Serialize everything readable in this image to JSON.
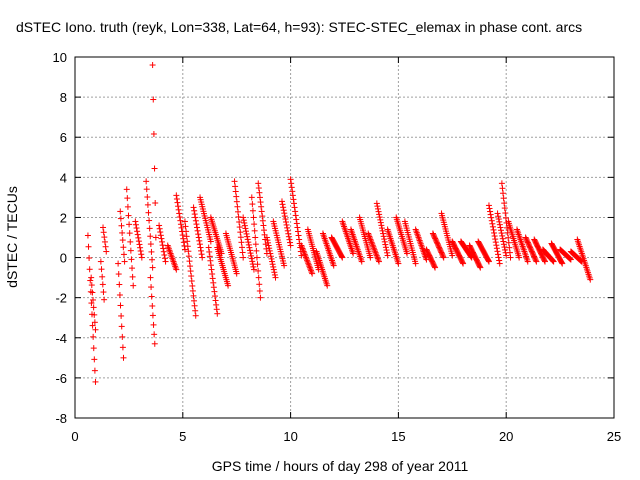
{
  "chart_data": {
    "type": "scatter",
    "title": "dSTEC Iono. truth (reyk, Lon=338, Lat=64, h=93): STEC-STEC_elemax in phase cont. arcs",
    "xlabel": "GPS time / hours of day 298 of year 2011",
    "ylabel": "dSTEC  / TECUs",
    "xlim": [
      0,
      25
    ],
    "ylim": [
      -8,
      10
    ],
    "x_ticks": [
      0,
      5,
      10,
      15,
      20,
      25
    ],
    "y_ticks": [
      -8,
      -6,
      -4,
      -2,
      0,
      2,
      4,
      6,
      8,
      10
    ],
    "grid": true,
    "marker": "+",
    "color": "#ff0000",
    "arcs": [
      {
        "x": [
          0.6,
          0.95
        ],
        "y": [
          1.1,
          -6.2
        ],
        "shape": "linear"
      },
      {
        "x": [
          0.75,
          0.95
        ],
        "y": [
          -1.0,
          -3.6
        ],
        "shape": "linear"
      },
      {
        "x": [
          1.2,
          1.35
        ],
        "y": [
          -0.2,
          -2.1
        ],
        "shape": "linear"
      },
      {
        "x": [
          1.3,
          1.45
        ],
        "y": [
          1.5,
          0.3
        ],
        "shape": "linear"
      },
      {
        "x": [
          2.0,
          2.25
        ],
        "y": [
          -0.3,
          -5.0
        ],
        "shape": "linear"
      },
      {
        "x": [
          2.1,
          2.3
        ],
        "y": [
          2.3,
          -0.2
        ],
        "shape": "linear"
      },
      {
        "x": [
          2.4,
          2.7
        ],
        "y": [
          3.4,
          -1.4
        ],
        "shape": "linear"
      },
      {
        "x": [
          2.8,
          3.1
        ],
        "y": [
          1.8,
          0.0
        ],
        "shape": "linear"
      },
      {
        "x": [
          3.3,
          3.6
        ],
        "y": [
          3.8,
          -0.5
        ],
        "shape": "linear"
      },
      {
        "x": [
          3.6,
          3.75
        ],
        "y": [
          9.6,
          1.0
        ],
        "shape": "linear"
      },
      {
        "x": [
          3.5,
          3.7
        ],
        "y": [
          -1.0,
          -4.3
        ],
        "shape": "linear"
      },
      {
        "x": [
          3.9,
          4.2
        ],
        "y": [
          1.6,
          -0.2
        ],
        "shape": "linear"
      },
      {
        "x": [
          4.3,
          4.7
        ],
        "y": [
          0.6,
          -0.6
        ],
        "shape": "linear"
      },
      {
        "x": [
          4.7,
          5.1
        ],
        "y": [
          3.1,
          0.4
        ],
        "shape": "linear"
      },
      {
        "x": [
          5.1,
          5.6
        ],
        "y": [
          1.8,
          -2.9
        ],
        "shape": "linear"
      },
      {
        "x": [
          5.5,
          5.9
        ],
        "y": [
          2.5,
          0.0
        ],
        "shape": "linear"
      },
      {
        "x": [
          5.8,
          6.3
        ],
        "y": [
          3.0,
          0.8
        ],
        "shape": "linear"
      },
      {
        "x": [
          6.2,
          6.6
        ],
        "y": [
          0.5,
          -2.8
        ],
        "shape": "linear"
      },
      {
        "x": [
          6.3,
          6.8
        ],
        "y": [
          2.0,
          0.2
        ],
        "shape": "linear"
      },
      {
        "x": [
          6.6,
          7.1
        ],
        "y": [
          0.5,
          -1.4
        ],
        "shape": "linear"
      },
      {
        "x": [
          7.0,
          7.5
        ],
        "y": [
          1.2,
          -0.8
        ],
        "shape": "linear"
      },
      {
        "x": [
          7.4,
          7.8
        ],
        "y": [
          3.8,
          0.0
        ],
        "shape": "linear"
      },
      {
        "x": [
          7.8,
          8.3
        ],
        "y": [
          2.0,
          -0.6
        ],
        "shape": "linear"
      },
      {
        "x": [
          8.2,
          8.6
        ],
        "y": [
          3.0,
          -2.0
        ],
        "shape": "linear"
      },
      {
        "x": [
          8.5,
          8.9
        ],
        "y": [
          3.7,
          0.2
        ],
        "shape": "linear"
      },
      {
        "x": [
          8.9,
          9.3
        ],
        "y": [
          1.0,
          -1.0
        ],
        "shape": "linear"
      },
      {
        "x": [
          9.2,
          9.7
        ],
        "y": [
          1.8,
          -0.4
        ],
        "shape": "linear"
      },
      {
        "x": [
          9.6,
          10.0
        ],
        "y": [
          2.8,
          0.6
        ],
        "shape": "linear"
      },
      {
        "x": [
          10.0,
          10.5
        ],
        "y": [
          3.9,
          0.1
        ],
        "shape": "linear"
      },
      {
        "x": [
          10.5,
          11.0
        ],
        "y": [
          0.6,
          -0.8
        ],
        "shape": "linear"
      },
      {
        "x": [
          10.8,
          11.3
        ],
        "y": [
          1.4,
          -0.6
        ],
        "shape": "linear"
      },
      {
        "x": [
          11.2,
          11.7
        ],
        "y": [
          0.3,
          -1.4
        ],
        "shape": "linear"
      },
      {
        "x": [
          11.5,
          12.0
        ],
        "y": [
          1.2,
          -0.4
        ],
        "shape": "linear"
      },
      {
        "x": [
          11.9,
          12.4
        ],
        "y": [
          1.0,
          0.0
        ],
        "shape": "linear"
      },
      {
        "x": [
          12.4,
          12.9
        ],
        "y": [
          1.8,
          0.2
        ],
        "shape": "linear"
      },
      {
        "x": [
          12.8,
          13.3
        ],
        "y": [
          1.4,
          -0.2
        ],
        "shape": "linear"
      },
      {
        "x": [
          13.2,
          13.7
        ],
        "y": [
          2.0,
          0.0
        ],
        "shape": "linear"
      },
      {
        "x": [
          13.6,
          14.1
        ],
        "y": [
          1.2,
          -0.2
        ],
        "shape": "linear"
      },
      {
        "x": [
          14.0,
          14.5
        ],
        "y": [
          2.7,
          0.1
        ],
        "shape": "linear"
      },
      {
        "x": [
          14.5,
          15.0
        ],
        "y": [
          1.4,
          -0.3
        ],
        "shape": "linear"
      },
      {
        "x": [
          14.9,
          15.4
        ],
        "y": [
          2.0,
          0.2
        ],
        "shape": "linear"
      },
      {
        "x": [
          15.3,
          15.8
        ],
        "y": [
          1.8,
          -0.3
        ],
        "shape": "linear"
      },
      {
        "x": [
          15.8,
          16.3
        ],
        "y": [
          1.4,
          -0.1
        ],
        "shape": "linear"
      },
      {
        "x": [
          16.3,
          16.7
        ],
        "y": [
          0.4,
          -0.5
        ],
        "shape": "linear"
      },
      {
        "x": [
          16.6,
          17.1
        ],
        "y": [
          1.2,
          0.0
        ],
        "shape": "linear"
      },
      {
        "x": [
          17.0,
          17.5
        ],
        "y": [
          2.2,
          0.1
        ],
        "shape": "linear"
      },
      {
        "x": [
          17.5,
          18.0
        ],
        "y": [
          0.8,
          -0.3
        ],
        "shape": "linear"
      },
      {
        "x": [
          17.9,
          18.4
        ],
        "y": [
          0.8,
          0.0
        ],
        "shape": "linear"
      },
      {
        "x": [
          18.3,
          18.8
        ],
        "y": [
          0.6,
          -0.5
        ],
        "shape": "linear"
      },
      {
        "x": [
          18.7,
          19.2
        ],
        "y": [
          0.8,
          -0.2
        ],
        "shape": "linear"
      },
      {
        "x": [
          19.2,
          19.7
        ],
        "y": [
          2.6,
          -0.3
        ],
        "shape": "linear"
      },
      {
        "x": [
          19.6,
          20.0
        ],
        "y": [
          2.2,
          0.1
        ],
        "shape": "linear"
      },
      {
        "x": [
          19.8,
          20.2
        ],
        "y": [
          3.7,
          0.0
        ],
        "shape": "linear"
      },
      {
        "x": [
          20.1,
          20.6
        ],
        "y": [
          1.8,
          0.0
        ],
        "shape": "linear"
      },
      {
        "x": [
          20.5,
          21.0
        ],
        "y": [
          1.4,
          -0.2
        ],
        "shape": "linear"
      },
      {
        "x": [
          20.9,
          21.4
        ],
        "y": [
          1.0,
          -0.2
        ],
        "shape": "linear"
      },
      {
        "x": [
          21.3,
          21.8
        ],
        "y": [
          0.9,
          -0.2
        ],
        "shape": "linear"
      },
      {
        "x": [
          21.7,
          22.2
        ],
        "y": [
          0.4,
          -0.2
        ],
        "shape": "linear"
      },
      {
        "x": [
          22.1,
          22.6
        ],
        "y": [
          0.7,
          -0.3
        ],
        "shape": "linear"
      },
      {
        "x": [
          22.5,
          23.0
        ],
        "y": [
          0.4,
          -0.1
        ],
        "shape": "linear"
      },
      {
        "x": [
          23.0,
          23.5
        ],
        "y": [
          0.3,
          -0.2
        ],
        "shape": "linear"
      },
      {
        "x": [
          23.3,
          23.9
        ],
        "y": [
          0.9,
          -1.1
        ],
        "shape": "linear"
      }
    ]
  }
}
